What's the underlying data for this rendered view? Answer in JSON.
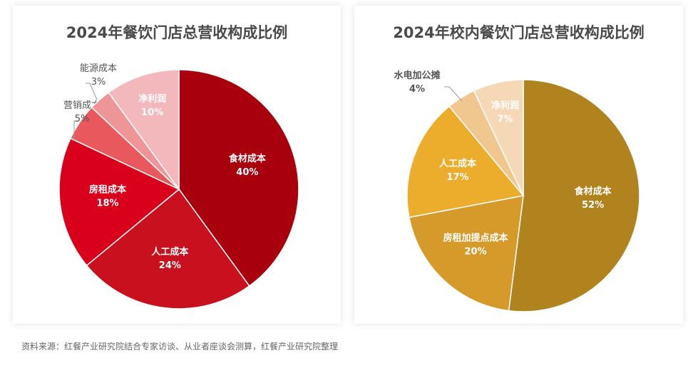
{
  "chart_data": [
    {
      "type": "pie",
      "title": "2024年餐饮门店总营收构成比例",
      "categories": [
        "食材成本",
        "人工成本",
        "房租成本",
        "营销成本",
        "能源成本",
        "净利润"
      ],
      "values": [
        40,
        24,
        18,
        5,
        3,
        10
      ],
      "labels": [
        "40%",
        "24%",
        "18%",
        "5%",
        "3%",
        "10%"
      ],
      "colors": [
        "#a8000c",
        "#c8101e",
        "#d9001b",
        "#e8585c",
        "#ee9598",
        "#f2b8bb"
      ]
    },
    {
      "type": "pie",
      "title": "2024年校内餐饮门店总营收构成比例",
      "categories": [
        "食材成本",
        "房租加提点成本",
        "人工成本",
        "水电加公摊",
        "净利润"
      ],
      "values": [
        52,
        20,
        17,
        4,
        7
      ],
      "labels": [
        "52%",
        "20%",
        "17%",
        "4%",
        "7%"
      ],
      "colors": [
        "#b0831e",
        "#d69a2a",
        "#ecad2c",
        "#f0c78e",
        "#f5d9b7"
      ]
    }
  ],
  "footer": "资料来源：红餐产业研究院结合专家访谈、从业者座谈会测算，红餐产业研究院整理"
}
